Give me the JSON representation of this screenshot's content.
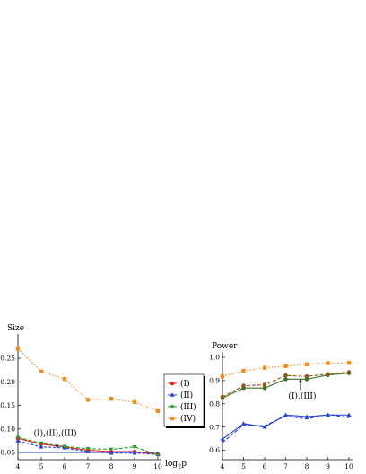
{
  "chart_data": [
    {
      "type": "line",
      "ylabel": "Size",
      "xlabel_base": "log",
      "xlabel_sub": "2",
      "xlabel_var": "p",
      "x": [
        4,
        5,
        6,
        7,
        8,
        9,
        10
      ],
      "xlim": [
        4,
        10
      ],
      "ylim": [
        0.035,
        0.29
      ],
      "yticks": [
        0.05,
        0.1,
        0.15,
        0.2,
        0.25
      ],
      "ytick_labels": [
        "0.05",
        "0.10",
        "0.15",
        "0.20",
        "0.25"
      ],
      "xtick_labels": [
        "4",
        "5",
        "6",
        "7",
        "8",
        "9",
        "10"
      ],
      "reference_line": 0.05,
      "series": [
        {
          "name": "(I)",
          "values": [
            0.08,
            0.068,
            0.062,
            0.055,
            0.052,
            0.052,
            0.046
          ],
          "color": "#e8231b",
          "marker": "circle",
          "dash": "none"
        },
        {
          "name": "(II)",
          "values": [
            0.075,
            0.062,
            0.06,
            0.052,
            0.049,
            0.049,
            0.046
          ],
          "color": "#1f3fd6",
          "marker": "triangle-up",
          "dash": "3,2"
        },
        {
          "name": "(III)",
          "values": [
            0.082,
            0.07,
            0.063,
            0.058,
            0.057,
            0.062,
            0.045
          ],
          "color": "#2a9a2a",
          "marker": "triangle-down",
          "dash": "4,2"
        },
        {
          "name": "(IV)",
          "values": [
            0.27,
            0.222,
            0.206,
            0.162,
            0.164,
            0.157,
            0.138
          ],
          "color": "#f28c1e",
          "marker": "square",
          "dash": "1.5,2"
        }
      ],
      "annotations": [
        {
          "text": "(I),(II),(III)",
          "x": 5.6,
          "y": 0.072
        }
      ]
    },
    {
      "type": "line",
      "ylabel": "Power",
      "x": [
        4,
        5,
        6,
        7,
        8,
        9,
        10
      ],
      "xlim": [
        4,
        10
      ],
      "ylim": [
        0.56,
        1.0
      ],
      "yticks": [
        0.6,
        0.7,
        0.8,
        0.9,
        1.0
      ],
      "ytick_labels": [
        "0.6",
        "0.7",
        "0.8",
        "0.9",
        "1.0"
      ],
      "xtick_labels": [
        "4",
        "5",
        "6",
        "7",
        "8",
        "9",
        "10"
      ],
      "series": [
        {
          "name": "(I)",
          "values": [
            0.825,
            0.868,
            0.868,
            0.906,
            0.906,
            0.924,
            0.932
          ],
          "color": "#3d6e2a",
          "marker": "circle",
          "dash": "none"
        },
        {
          "name": "(II)",
          "values": [
            0.648,
            0.715,
            0.7,
            0.752,
            0.745,
            0.752,
            0.752
          ],
          "color": "#1f3fd6",
          "marker": "triangle-up",
          "dash": "none"
        },
        {
          "name": "(II)b",
          "values": [
            0.633,
            0.71,
            0.705,
            0.748,
            0.735,
            0.755,
            0.74
          ],
          "color": "#1f3fd6",
          "marker": "none",
          "dash": "4,2"
        },
        {
          "name": "(III)",
          "values": [
            0.83,
            0.878,
            0.882,
            0.922,
            0.918,
            0.928,
            0.936
          ],
          "color": "#8a5a1a",
          "marker": "circle",
          "dash": "4,2"
        },
        {
          "name": "(IV)",
          "values": [
            0.918,
            0.942,
            0.955,
            0.962,
            0.97,
            0.975,
            0.976
          ],
          "color": "#f28c1e",
          "marker": "square",
          "dash": "1.5,2"
        }
      ],
      "annotations": [
        {
          "text": "(I),(III)",
          "x": 7.7,
          "y": 0.845
        }
      ]
    }
  ],
  "legend": {
    "placement": "between-plots",
    "items": [
      {
        "label": "(I)",
        "color": "#e8231b",
        "marker": "circle"
      },
      {
        "label": "(II)",
        "color": "#1f3fd6",
        "marker": "triangle-up"
      },
      {
        "label": "(III)",
        "color": "#2a9a2a",
        "marker": "triangle-down"
      },
      {
        "label": "(IV)",
        "color": "#f28c1e",
        "marker": "square"
      }
    ]
  }
}
